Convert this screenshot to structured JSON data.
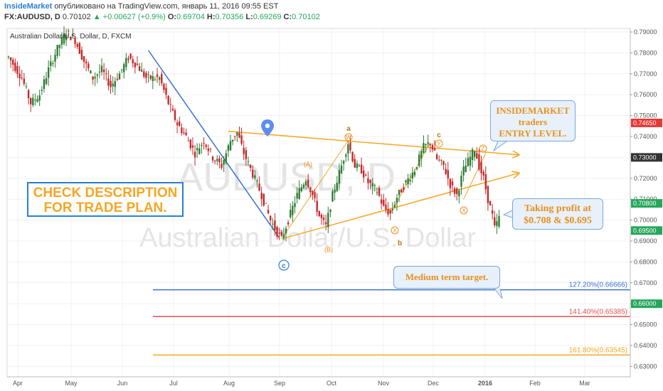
{
  "header": {
    "line1": {
      "brand": "InsideMarket",
      "published": "опубликовано на TradingView.com, январь 11, 2016 09:55 EST"
    },
    "line2": {
      "symbol": "FX:AUDUSD, D",
      "price": "0.70102",
      "change": "▲ +0.00627 (+0.9%)",
      "open_key": "O:",
      "open": "0.69704",
      "high_key": "H:",
      "high": "0.70356",
      "low_key": "L:",
      "low": "0.69269",
      "close_key": "C:",
      "close": "0.70102"
    }
  },
  "legend_title": "Australian Dollar/U.S. Dollar, D, FXCM",
  "watermark": {
    "symbol": "AUDUSD, D",
    "name": "Australian Dollar/U.S. Dollar"
  },
  "callouts": {
    "entry_level": [
      "INSIDEMARKET",
      "traders",
      "ENTRY LEVEL."
    ],
    "take_profit": [
      "Taking profit at",
      "$0.708 & $0.695"
    ],
    "medium_target": "Medium term target.",
    "plan": [
      "CHECK DESCRIPTION",
      "FOR TRADE PLAN."
    ]
  },
  "wave_labels": {
    "c_main": "c",
    "A": "(A)",
    "B": "(B)",
    "a": "a",
    "W": "W",
    "X1": "X",
    "b": "b",
    "c": "c",
    "Y": "Y",
    "X2": "X",
    "Z": "Z"
  },
  "fib_levels": [
    {
      "label": "127.20%(0.66666)",
      "price": 0.66666,
      "color": "#3a6fd0"
    },
    {
      "label": "141.40%(0.65385)",
      "price": 0.65385,
      "color": "#e05050"
    },
    {
      "label": "161.80%(0.63545)",
      "price": 0.63545,
      "color": "#f5a623"
    }
  ],
  "price_badges": [
    {
      "label": "0.74650",
      "price": 0.7465,
      "color": "#e53935"
    },
    {
      "label": "0.73000",
      "price": 0.73,
      "color": "#333333"
    },
    {
      "label": "0.70800",
      "price": 0.708,
      "color": "#26a65b"
    },
    {
      "label": "0.69500",
      "price": 0.695,
      "color": "#26a65b"
    },
    {
      "label": "0.66000",
      "price": 0.66,
      "color": "#26a65b"
    }
  ],
  "chart_data": {
    "type": "candlestick",
    "title": "Australian Dollar/U.S. Dollar, D, FXCM",
    "y_axis": {
      "min": 0.634,
      "max": 0.792,
      "ticks": [
        0.63,
        0.64,
        0.65,
        0.66,
        0.67,
        0.68,
        0.69,
        0.7,
        0.71,
        0.72,
        0.73,
        0.74,
        0.75,
        0.76,
        0.77,
        0.78,
        0.79
      ]
    },
    "x_axis_labels": [
      "Apr",
      "May",
      "Jun",
      "Jul",
      "Aug",
      "Sep",
      "Oct",
      "Nov",
      "Dec",
      "2016",
      "Feb",
      "Mar"
    ],
    "price_path": [
      [
        0,
        0.778
      ],
      [
        6,
        0.768
      ],
      [
        10,
        0.756
      ],
      [
        14,
        0.76
      ],
      [
        18,
        0.772
      ],
      [
        22,
        0.782
      ],
      [
        26,
        0.79
      ],
      [
        30,
        0.786
      ],
      [
        34,
        0.776
      ],
      [
        38,
        0.768
      ],
      [
        42,
        0.772
      ],
      [
        46,
        0.764
      ],
      [
        50,
        0.77
      ],
      [
        54,
        0.778
      ],
      [
        58,
        0.774
      ],
      [
        62,
        0.768
      ],
      [
        68,
        0.768
      ],
      [
        72,
        0.756
      ],
      [
        76,
        0.746
      ],
      [
        80,
        0.74
      ],
      [
        84,
        0.732
      ],
      [
        88,
        0.738
      ],
      [
        92,
        0.73
      ],
      [
        96,
        0.726
      ],
      [
        100,
        0.738
      ],
      [
        103,
        0.742
      ],
      [
        106,
        0.732
      ],
      [
        110,
        0.722
      ],
      [
        114,
        0.712
      ],
      [
        118,
        0.7
      ],
      [
        121,
        0.694
      ],
      [
        123,
        0.691
      ],
      [
        126,
        0.7
      ],
      [
        130,
        0.712
      ],
      [
        134,
        0.72
      ],
      [
        137,
        0.712
      ],
      [
        140,
        0.702
      ],
      [
        143,
        0.697
      ],
      [
        146,
        0.712
      ],
      [
        150,
        0.726
      ],
      [
        153,
        0.737
      ],
      [
        156,
        0.726
      ],
      [
        159,
        0.724
      ],
      [
        162,
        0.718
      ],
      [
        166,
        0.714
      ],
      [
        169,
        0.706
      ],
      [
        172,
        0.703
      ],
      [
        175,
        0.711
      ],
      [
        179,
        0.718
      ],
      [
        183,
        0.724
      ],
      [
        187,
        0.735
      ],
      [
        190,
        0.737
      ],
      [
        193,
        0.729
      ],
      [
        196,
        0.726
      ],
      [
        199,
        0.717
      ],
      [
        202,
        0.712
      ],
      [
        205,
        0.724
      ],
      [
        208,
        0.73
      ],
      [
        210,
        0.734
      ],
      [
        212,
        0.726
      ],
      [
        214,
        0.72
      ],
      [
        216,
        0.71
      ],
      [
        218,
        0.702
      ],
      [
        219,
        0.696
      ],
      [
        221,
        0.701
      ]
    ],
    "lines": [
      {
        "name": "triangle upper",
        "from": [
          99,
          0.7425
        ],
        "to": [
          230,
          0.7312
        ],
        "color": "orange"
      },
      {
        "name": "triangle lower",
        "from": [
          123,
          0.691
        ],
        "to": [
          230,
          0.7225
        ],
        "color": "orange"
      },
      {
        "name": "down trend",
        "from": [
          63,
          0.7812
        ],
        "to": [
          122,
          0.6915
        ],
        "color": "blue"
      }
    ]
  }
}
